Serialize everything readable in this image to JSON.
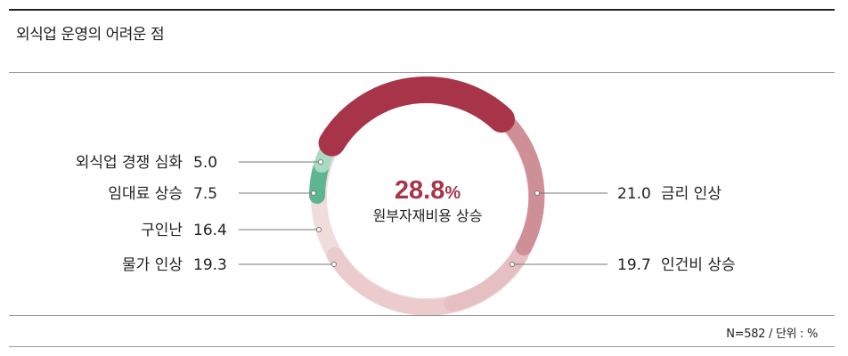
{
  "title": "외식업 운영의 어려운 점",
  "note": "N=582 / 단위 : %",
  "chart_data": {
    "type": "donut",
    "title": "외식업 운영의 어려운 점",
    "unit": "%",
    "center": {
      "value": "28.8",
      "unit": "%",
      "label": "원부자재비용 상승"
    },
    "slices": [
      {
        "name": "원부자재비용 상승",
        "value": 28.8,
        "color": "#a8344a"
      },
      {
        "name": "금리 인상",
        "value": 21.0,
        "color": "#cf8f97"
      },
      {
        "name": "인건비 상승",
        "value": 19.7,
        "color": "#e2b6b9"
      },
      {
        "name": "물가 인상",
        "value": 19.3,
        "color": "#ebcbcc"
      },
      {
        "name": "구인난",
        "value": 16.4,
        "color": "#f1dcdc"
      },
      {
        "name": "임대료 상승",
        "value": 7.5,
        "color": "#5fb592"
      },
      {
        "name": "외식업 경쟁 심화",
        "value": 5.0,
        "color": "#a9dbc3"
      }
    ],
    "labels_left": [
      {
        "name": "외식업 경쟁 심화",
        "value": "5.0"
      },
      {
        "name": "임대료 상승",
        "value": "7.5"
      },
      {
        "name": "구인난",
        "value": "16.4"
      },
      {
        "name": "물가 인상",
        "value": "19.3"
      }
    ],
    "labels_right": [
      {
        "name": "금리 인상",
        "value": "21.0"
      },
      {
        "name": "인건비 상승",
        "value": "19.7"
      }
    ]
  }
}
